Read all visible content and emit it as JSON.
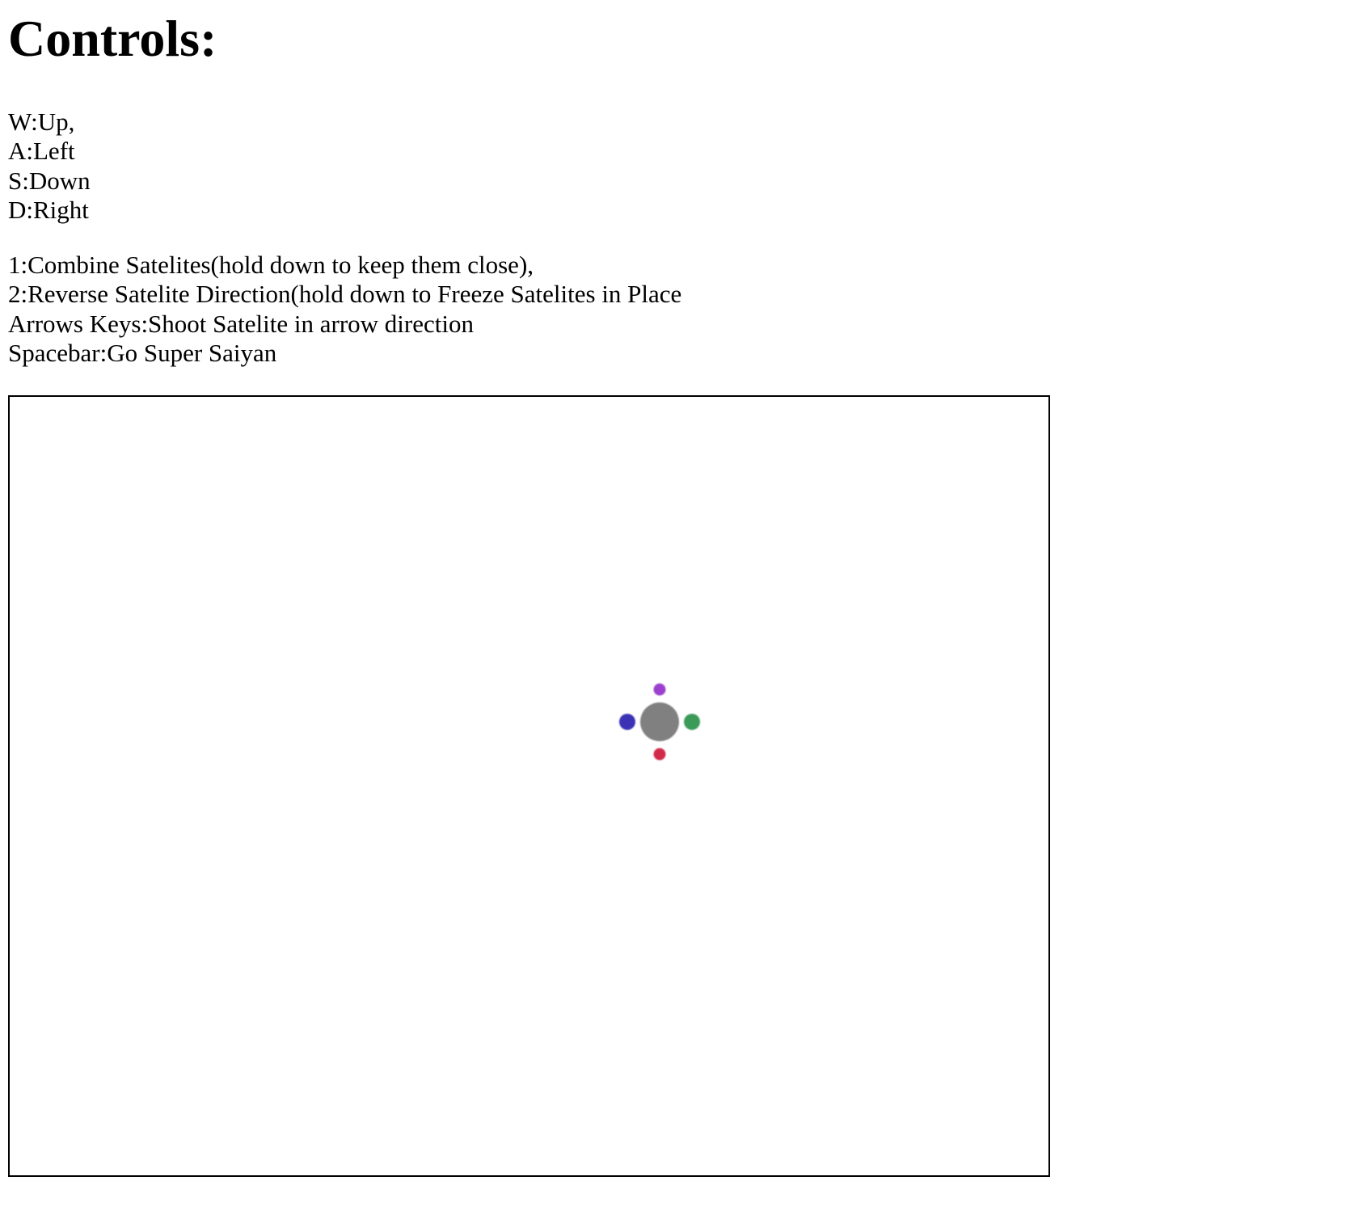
{
  "heading": "Controls:",
  "movement_controls": [
    "W:Up,",
    "A:Left",
    "S:Down",
    "D:Right"
  ],
  "action_controls": [
    "1:Combine Satelites(hold down to keep them close),",
    "2:Reverse Satelite Direction(hold down to Freeze Satelites in Place",
    "Arrows Keys:Shoot Satelite in arrow direction",
    "Spacebar:Go Super Saiyan"
  ],
  "game": {
    "player_color": "#808080",
    "satellites": [
      {
        "name": "satellite-top",
        "color": "#9b3fcf"
      },
      {
        "name": "satellite-left",
        "color": "#3b32b5"
      },
      {
        "name": "satellite-right",
        "color": "#3b9a58"
      },
      {
        "name": "satellite-bottom",
        "color": "#d22a4a"
      }
    ]
  }
}
